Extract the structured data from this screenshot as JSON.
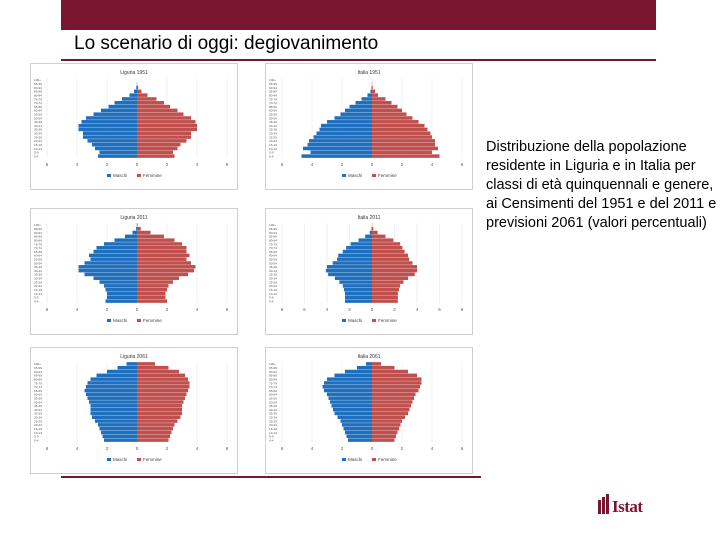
{
  "slide": {
    "title": "Lo scenario di oggi: degiovanimento",
    "caption": "Distribuzione della popolazione residente in Liguria e in Italia per classi di età quinquennali e genere, ai Censimenti del 1951 e del 2011 e previsioni 2061 (valori percentuali)",
    "logo_text": "Istat",
    "colors": {
      "accent": "#7a1530",
      "male": "#1f6fbf",
      "female": "#c0504d"
    }
  },
  "chart_data": [
    {
      "type": "bar",
      "title": "Liguria 1951",
      "age_classes": [
        "0-4",
        "5-9",
        "10-14",
        "15-19",
        "20-24",
        "25-29",
        "30-34",
        "35-39",
        "40-44",
        "45-49",
        "50-54",
        "55-59",
        "60-64",
        "65-69",
        "70-74",
        "75-79",
        "80-84",
        "85-89",
        "90-94",
        "95-99",
        "100+"
      ],
      "series": [
        {
          "name": "Maschi",
          "values": [
            2.6,
            2.5,
            2.8,
            3.0,
            3.3,
            3.6,
            3.6,
            3.9,
            3.9,
            3.7,
            3.4,
            2.9,
            2.4,
            1.9,
            1.5,
            1.0,
            0.5,
            0.2,
            0.05,
            0.01,
            0.0
          ]
        },
        {
          "name": "Femmine",
          "values": [
            2.5,
            2.4,
            2.7,
            2.9,
            3.3,
            3.6,
            3.6,
            4.0,
            4.0,
            3.9,
            3.6,
            3.1,
            2.7,
            2.2,
            1.8,
            1.3,
            0.7,
            0.3,
            0.08,
            0.01,
            0.0
          ]
        }
      ],
      "xticks": [
        "6",
        "4",
        "2",
        "0",
        "2",
        "4",
        "6"
      ],
      "xlim": [
        -6,
        6
      ]
    },
    {
      "type": "bar",
      "title": "Italia 1951",
      "age_classes": [
        "0-4",
        "5-9",
        "10-14",
        "15-19",
        "20-24",
        "25-29",
        "30-34",
        "35-39",
        "40-44",
        "45-49",
        "50-54",
        "55-59",
        "60-64",
        "65-69",
        "70-74",
        "75-79",
        "80-84",
        "85-89",
        "90-94",
        "95-99",
        "100+"
      ],
      "series": [
        {
          "name": "Maschi",
          "values": [
            4.7,
            4.1,
            4.6,
            4.3,
            4.2,
            3.9,
            3.7,
            3.5,
            3.4,
            3.0,
            2.5,
            2.1,
            1.8,
            1.5,
            1.1,
            0.7,
            0.3,
            0.1,
            0.03,
            0.01,
            0.0
          ]
        },
        {
          "name": "Femmine",
          "values": [
            4.5,
            4.0,
            4.4,
            4.2,
            4.2,
            4.0,
            3.9,
            3.7,
            3.5,
            3.1,
            2.7,
            2.3,
            2.0,
            1.7,
            1.3,
            0.9,
            0.4,
            0.2,
            0.05,
            0.01,
            0.0
          ]
        }
      ],
      "xticks": [
        "6",
        "4",
        "2",
        "0",
        "2",
        "4",
        "6"
      ],
      "xlim": [
        -6,
        6
      ]
    },
    {
      "type": "bar",
      "title": "Liguria 2011",
      "age_classes": [
        "0-4",
        "5-9",
        "10-14",
        "15-19",
        "20-24",
        "25-29",
        "30-34",
        "35-39",
        "40-44",
        "45-49",
        "50-54",
        "55-59",
        "60-64",
        "65-69",
        "70-74",
        "75-79",
        "80-84",
        "85-89",
        "90-94",
        "95-99",
        "100+"
      ],
      "series": [
        {
          "name": "Maschi",
          "values": [
            2.1,
            2.0,
            2.0,
            2.1,
            2.2,
            2.5,
            2.9,
            3.5,
            3.9,
            3.9,
            3.5,
            3.1,
            3.2,
            2.9,
            2.7,
            2.2,
            1.5,
            0.8,
            0.3,
            0.06,
            0.01
          ]
        },
        {
          "name": "Femmine",
          "values": [
            2.0,
            1.9,
            1.9,
            2.0,
            2.1,
            2.4,
            2.8,
            3.4,
            3.8,
            3.9,
            3.6,
            3.3,
            3.5,
            3.3,
            3.3,
            3.0,
            2.5,
            1.8,
            0.9,
            0.25,
            0.04
          ]
        }
      ],
      "xticks": [
        "6",
        "4",
        "2",
        "0",
        "2",
        "4",
        "6"
      ],
      "xlim": [
        -6,
        6
      ]
    },
    {
      "type": "bar",
      "title": "Italia 2011",
      "age_classes": [
        "0-4",
        "5-9",
        "10-14",
        "15-19",
        "20-24",
        "25-29",
        "30-34",
        "35-39",
        "40-44",
        "45-49",
        "50-54",
        "55-59",
        "60-64",
        "65-69",
        "70-74",
        "75-79",
        "80-84",
        "85-89",
        "90-94",
        "95-99",
        "100+"
      ],
      "series": [
        {
          "name": "Maschi",
          "values": [
            2.4,
            2.4,
            2.4,
            2.5,
            2.6,
            2.9,
            3.3,
            3.9,
            4.1,
            4.0,
            3.5,
            3.1,
            3.0,
            2.6,
            2.3,
            1.9,
            1.2,
            0.6,
            0.2,
            0.04,
            0.0
          ]
        },
        {
          "name": "Femmine",
          "values": [
            2.3,
            2.3,
            2.3,
            2.4,
            2.5,
            2.8,
            3.2,
            3.8,
            4.0,
            4.0,
            3.6,
            3.3,
            3.2,
            2.9,
            2.7,
            2.5,
            1.9,
            1.2,
            0.5,
            0.12,
            0.02
          ]
        }
      ],
      "xticks": [
        "8",
        "6",
        "4",
        "2",
        "0",
        "2",
        "4",
        "6",
        "8"
      ],
      "xlim": [
        -8,
        8
      ]
    },
    {
      "type": "bar",
      "title": "Liguria 2061",
      "age_classes": [
        "0-4",
        "5-9",
        "10-14",
        "15-19",
        "20-24",
        "25-29",
        "30-34",
        "35-39",
        "40-44",
        "45-49",
        "50-54",
        "55-59",
        "60-64",
        "65-69",
        "70-74",
        "75-79",
        "80-84",
        "85-89",
        "90-94",
        "95-99",
        "100+"
      ],
      "series": [
        {
          "name": "Maschi",
          "values": [
            2.2,
            2.3,
            2.4,
            2.5,
            2.6,
            2.8,
            3.0,
            3.1,
            3.1,
            3.1,
            3.2,
            3.3,
            3.4,
            3.5,
            3.4,
            3.3,
            3.1,
            2.7,
            2.0,
            1.3,
            0.7
          ]
        },
        {
          "name": "Femmine",
          "values": [
            2.1,
            2.2,
            2.3,
            2.4,
            2.5,
            2.7,
            2.9,
            3.0,
            3.0,
            3.0,
            3.1,
            3.2,
            3.3,
            3.4,
            3.5,
            3.5,
            3.4,
            3.2,
            2.8,
            2.1,
            1.2
          ]
        }
      ],
      "xticks": [
        "6",
        "4",
        "2",
        "0",
        "2",
        "4",
        "6"
      ],
      "xlim": [
        -6,
        6
      ]
    },
    {
      "type": "bar",
      "title": "Italia 2061",
      "age_classes": [
        "0-4",
        "5-9",
        "10-14",
        "15-19",
        "20-24",
        "25-29",
        "30-34",
        "35-39",
        "40-44",
        "45-49",
        "50-54",
        "55-59",
        "60-64",
        "65-69",
        "70-74",
        "75-79",
        "80-84",
        "85-89",
        "90-94",
        "95-99",
        "100+"
      ],
      "series": [
        {
          "name": "Maschi",
          "values": [
            1.6,
            1.7,
            1.8,
            1.9,
            2.0,
            2.1,
            2.3,
            2.5,
            2.6,
            2.7,
            2.8,
            2.9,
            3.0,
            3.2,
            3.3,
            3.2,
            3.0,
            2.5,
            1.8,
            1.0,
            0.4
          ]
        },
        {
          "name": "Femmine",
          "values": [
            1.5,
            1.6,
            1.7,
            1.8,
            1.9,
            2.0,
            2.2,
            2.4,
            2.5,
            2.6,
            2.7,
            2.8,
            2.9,
            3.1,
            3.2,
            3.3,
            3.3,
            3.0,
            2.4,
            1.5,
            0.6
          ]
        }
      ],
      "xticks": [
        "6",
        "4",
        "2",
        "0",
        "2",
        "4",
        "6"
      ],
      "xlim": [
        -6,
        6
      ]
    }
  ]
}
